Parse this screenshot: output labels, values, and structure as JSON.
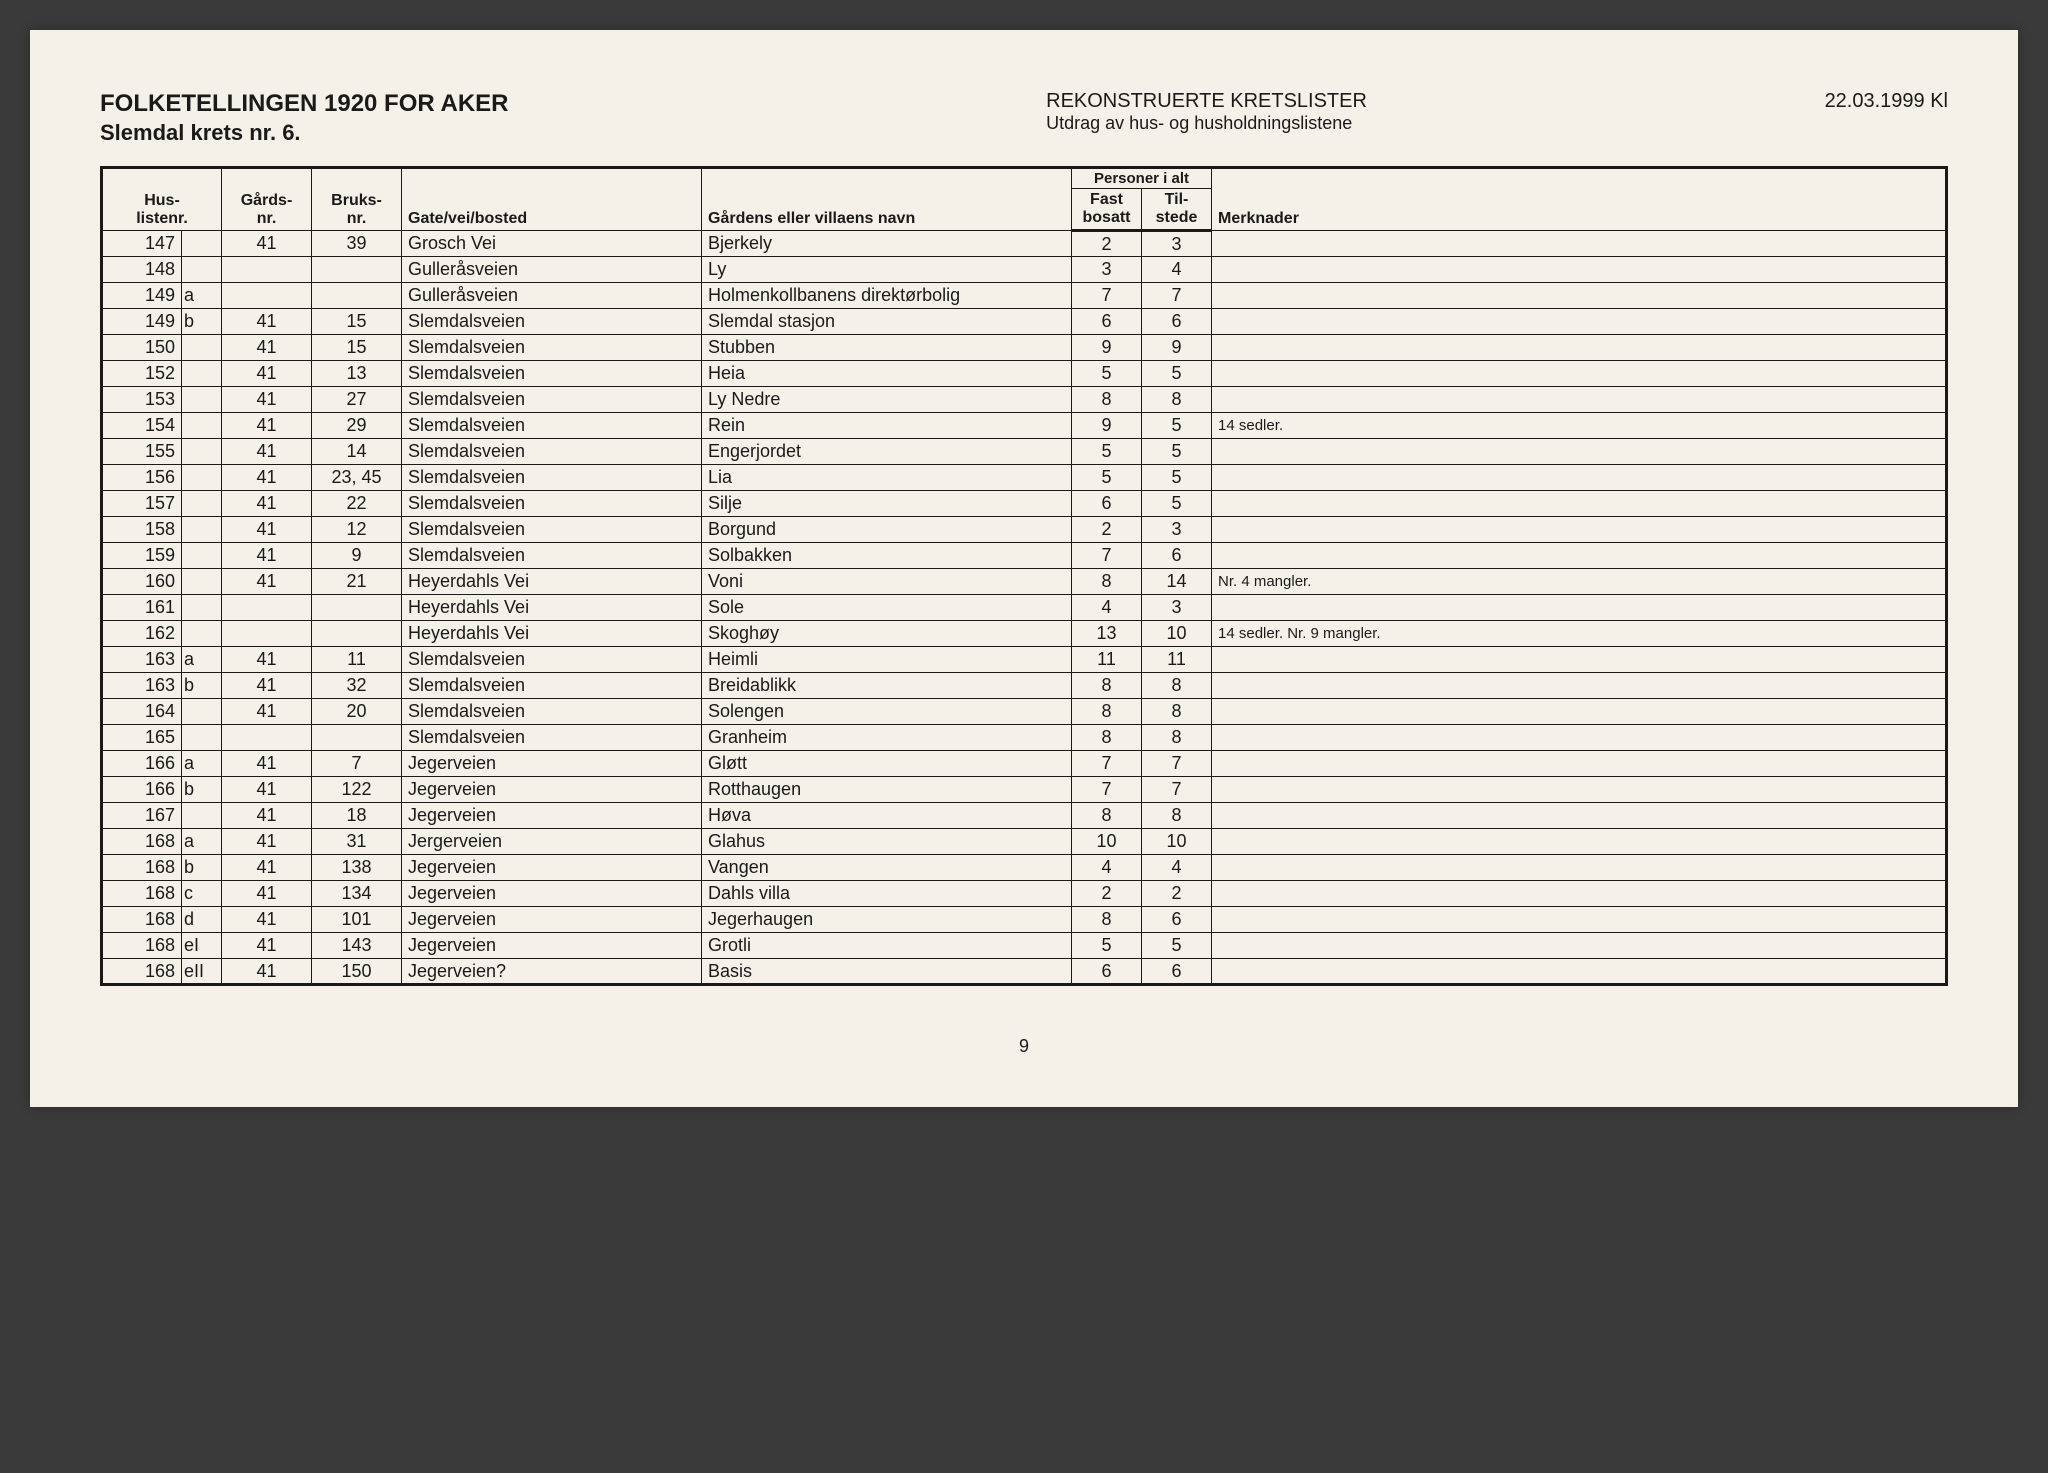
{
  "header": {
    "title_main": "FOLKETELLINGEN 1920 FOR AKER",
    "title_sub": "Slemdal krets nr. 6.",
    "center_title": "REKONSTRUERTE KRETSLISTER",
    "center_sub": "Utdrag av hus- og husholdningslistene",
    "date": "22.03.1999 Kl"
  },
  "columns": {
    "huslistenr": "Hus-\nlistenr.",
    "gardsnr": "Gårds-\nnr.",
    "bruksnr": "Bruks-\nnr.",
    "gate": "Gate/vei/bosted",
    "navn": "Gårdens eller villaens navn",
    "personer": "Personer i alt",
    "fast": "Fast\nbosatt",
    "tilstede": "Til-\nstede",
    "merknader": "Merknader"
  },
  "rows": [
    {
      "nr": "147",
      "suf": "",
      "gnr": "41",
      "bnr": "39",
      "gate": "Grosch Vei",
      "navn": "Bjerkely",
      "fast": "2",
      "til": "3",
      "merk": ""
    },
    {
      "nr": "148",
      "suf": "",
      "gnr": "",
      "bnr": "",
      "gate": "Gulleråsveien",
      "navn": "Ly",
      "fast": "3",
      "til": "4",
      "merk": ""
    },
    {
      "nr": "149",
      "suf": "a",
      "gnr": "",
      "bnr": "",
      "gate": "Gulleråsveien",
      "navn": "Holmenkollbanens direktørbolig",
      "fast": "7",
      "til": "7",
      "merk": ""
    },
    {
      "nr": "149",
      "suf": "b",
      "gnr": "41",
      "bnr": "15",
      "gate": "Slemdalsveien",
      "navn": "Slemdal stasjon",
      "fast": "6",
      "til": "6",
      "merk": ""
    },
    {
      "nr": "150",
      "suf": "",
      "gnr": "41",
      "bnr": "15",
      "gate": "Slemdalsveien",
      "navn": "Stubben",
      "fast": "9",
      "til": "9",
      "merk": ""
    },
    {
      "nr": "152",
      "suf": "",
      "gnr": "41",
      "bnr": "13",
      "gate": "Slemdalsveien",
      "navn": "Heia",
      "fast": "5",
      "til": "5",
      "merk": ""
    },
    {
      "nr": "153",
      "suf": "",
      "gnr": "41",
      "bnr": "27",
      "gate": "Slemdalsveien",
      "navn": "Ly Nedre",
      "fast": "8",
      "til": "8",
      "merk": ""
    },
    {
      "nr": "154",
      "suf": "",
      "gnr": "41",
      "bnr": "29",
      "gate": "Slemdalsveien",
      "navn": "Rein",
      "fast": "9",
      "til": "5",
      "merk": "14 sedler."
    },
    {
      "nr": "155",
      "suf": "",
      "gnr": "41",
      "bnr": "14",
      "gate": "Slemdalsveien",
      "navn": "Engerjordet",
      "fast": "5",
      "til": "5",
      "merk": ""
    },
    {
      "nr": "156",
      "suf": "",
      "gnr": "41",
      "bnr": "23, 45",
      "gate": "Slemdalsveien",
      "navn": "Lia",
      "fast": "5",
      "til": "5",
      "merk": ""
    },
    {
      "nr": "157",
      "suf": "",
      "gnr": "41",
      "bnr": "22",
      "gate": "Slemdalsveien",
      "navn": "Silje",
      "fast": "6",
      "til": "5",
      "merk": ""
    },
    {
      "nr": "158",
      "suf": "",
      "gnr": "41",
      "bnr": "12",
      "gate": "Slemdalsveien",
      "navn": "Borgund",
      "fast": "2",
      "til": "3",
      "merk": ""
    },
    {
      "nr": "159",
      "suf": "",
      "gnr": "41",
      "bnr": "9",
      "gate": "Slemdalsveien",
      "navn": "Solbakken",
      "fast": "7",
      "til": "6",
      "merk": ""
    },
    {
      "nr": "160",
      "suf": "",
      "gnr": "41",
      "bnr": "21",
      "gate": "Heyerdahls Vei",
      "navn": "Voni",
      "fast": "8",
      "til": "14",
      "merk": "Nr. 4 mangler."
    },
    {
      "nr": "161",
      "suf": "",
      "gnr": "",
      "bnr": "",
      "gate": "Heyerdahls Vei",
      "navn": "Sole",
      "fast": "4",
      "til": "3",
      "merk": ""
    },
    {
      "nr": "162",
      "suf": "",
      "gnr": "",
      "bnr": "",
      "gate": "Heyerdahls Vei",
      "navn": "Skoghøy",
      "fast": "13",
      "til": "10",
      "merk": "14 sedler. Nr. 9 mangler."
    },
    {
      "nr": "163",
      "suf": "a",
      "gnr": "41",
      "bnr": "11",
      "gate": "Slemdalsveien",
      "navn": "Heimli",
      "fast": "11",
      "til": "11",
      "merk": ""
    },
    {
      "nr": "163",
      "suf": "b",
      "gnr": "41",
      "bnr": "32",
      "gate": "Slemdalsveien",
      "navn": "Breidablikk",
      "fast": "8",
      "til": "8",
      "merk": ""
    },
    {
      "nr": "164",
      "suf": "",
      "gnr": "41",
      "bnr": "20",
      "gate": "Slemdalsveien",
      "navn": "Solengen",
      "fast": "8",
      "til": "8",
      "merk": ""
    },
    {
      "nr": "165",
      "suf": "",
      "gnr": "",
      "bnr": "",
      "gate": "Slemdalsveien",
      "navn": "Granheim",
      "fast": "8",
      "til": "8",
      "merk": ""
    },
    {
      "nr": "166",
      "suf": "a",
      "gnr": "41",
      "bnr": "7",
      "gate": "Jegerveien",
      "navn": "Gløtt",
      "fast": "7",
      "til": "7",
      "merk": ""
    },
    {
      "nr": "166",
      "suf": "b",
      "gnr": "41",
      "bnr": "122",
      "gate": "Jegerveien",
      "navn": "Rotthaugen",
      "fast": "7",
      "til": "7",
      "merk": ""
    },
    {
      "nr": "167",
      "suf": "",
      "gnr": "41",
      "bnr": "18",
      "gate": "Jegerveien",
      "navn": "Høva",
      "fast": "8",
      "til": "8",
      "merk": ""
    },
    {
      "nr": "168",
      "suf": "a",
      "gnr": "41",
      "bnr": "31",
      "gate": "Jergerveien",
      "navn": "Glahus",
      "fast": "10",
      "til": "10",
      "merk": ""
    },
    {
      "nr": "168",
      "suf": "b",
      "gnr": "41",
      "bnr": "138",
      "gate": "Jegerveien",
      "navn": "Vangen",
      "fast": "4",
      "til": "4",
      "merk": ""
    },
    {
      "nr": "168",
      "suf": "c",
      "gnr": "41",
      "bnr": "134",
      "gate": "Jegerveien",
      "navn": "Dahls villa",
      "fast": "2",
      "til": "2",
      "merk": ""
    },
    {
      "nr": "168",
      "suf": "d",
      "gnr": "41",
      "bnr": "101",
      "gate": "Jegerveien",
      "navn": "Jegerhaugen",
      "fast": "8",
      "til": "6",
      "merk": ""
    },
    {
      "nr": "168",
      "suf": "eI",
      "gnr": "41",
      "bnr": "143",
      "gate": "Jegerveien",
      "navn": "Grotli",
      "fast": "5",
      "til": "5",
      "merk": ""
    },
    {
      "nr": "168",
      "suf": "eII",
      "gnr": "41",
      "bnr": "150",
      "gate": "Jegerveien?",
      "navn": "Basis",
      "fast": "6",
      "til": "6",
      "merk": ""
    }
  ],
  "page_number": "9",
  "styling": {
    "page_bg": "#f5f0e8",
    "outer_bg": "#3a3a3a",
    "border_color": "#1a1a1a",
    "text_color": "#1a1a1a",
    "title_fontsize": 24,
    "body_fontsize": 18,
    "header_fontsize": 16
  }
}
